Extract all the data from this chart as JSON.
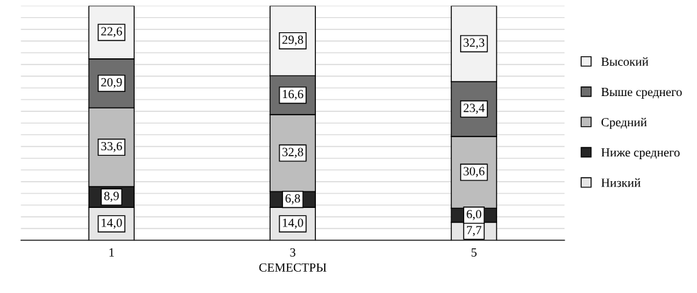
{
  "chart_data": {
    "type": "bar",
    "stacked": true,
    "xlabel": "СЕМЕСТРЫ",
    "categories": [
      "1",
      "3",
      "5"
    ],
    "series": [
      {
        "name": "Низкий",
        "color": "#e6e6e6",
        "values": [
          14.0,
          14.0,
          7.7
        ],
        "value_labels": [
          "14,0",
          "14,0",
          "7,7"
        ]
      },
      {
        "name": "Ниже среднего",
        "color": "#262626",
        "values": [
          8.9,
          6.8,
          6.0
        ],
        "value_labels": [
          "8,9",
          "6,8",
          "6,0"
        ]
      },
      {
        "name": "Средний",
        "color": "#bdbdbd",
        "values": [
          33.6,
          32.8,
          30.6
        ],
        "value_labels": [
          "33,6",
          "32,8",
          "30,6"
        ]
      },
      {
        "name": "Выше среднего",
        "color": "#6e6e6e",
        "values": [
          20.9,
          16.6,
          23.4
        ],
        "value_labels": [
          "20,9",
          "16,6",
          "23,4"
        ]
      },
      {
        "name": "Высокий",
        "color": "#f2f2f2",
        "values": [
          22.6,
          29.8,
          32.3
        ],
        "value_labels": [
          "22,6",
          "29,8",
          "32,3"
        ]
      }
    ],
    "ylim": [
      0,
      100
    ],
    "yticks": [
      {
        "value": 0,
        "label": null
      },
      {
        "value": 5,
        "label": null
      },
      {
        "value": 10,
        "label": null
      },
      {
        "value": 15,
        "label": null
      },
      {
        "value": 20,
        "label": null
      },
      {
        "value": 25,
        "label": null
      },
      {
        "value": 30,
        "label": null
      },
      {
        "value": 35,
        "label": null
      },
      {
        "value": 40,
        "label": null
      },
      {
        "value": 45,
        "label": null
      },
      {
        "value": 50,
        "label": null
      },
      {
        "value": 55,
        "label": null
      },
      {
        "value": 60,
        "label": null
      },
      {
        "value": 65,
        "label": null
      },
      {
        "value": 70,
        "label": null
      },
      {
        "value": 75,
        "label": null
      },
      {
        "value": 80,
        "label": null
      },
      {
        "value": 85,
        "label": null
      },
      {
        "value": 90,
        "label": null
      },
      {
        "value": 95,
        "label": null
      },
      {
        "value": 100,
        "label": null
      }
    ],
    "grid": "y",
    "legend": "right",
    "tick_labels": "x"
  }
}
